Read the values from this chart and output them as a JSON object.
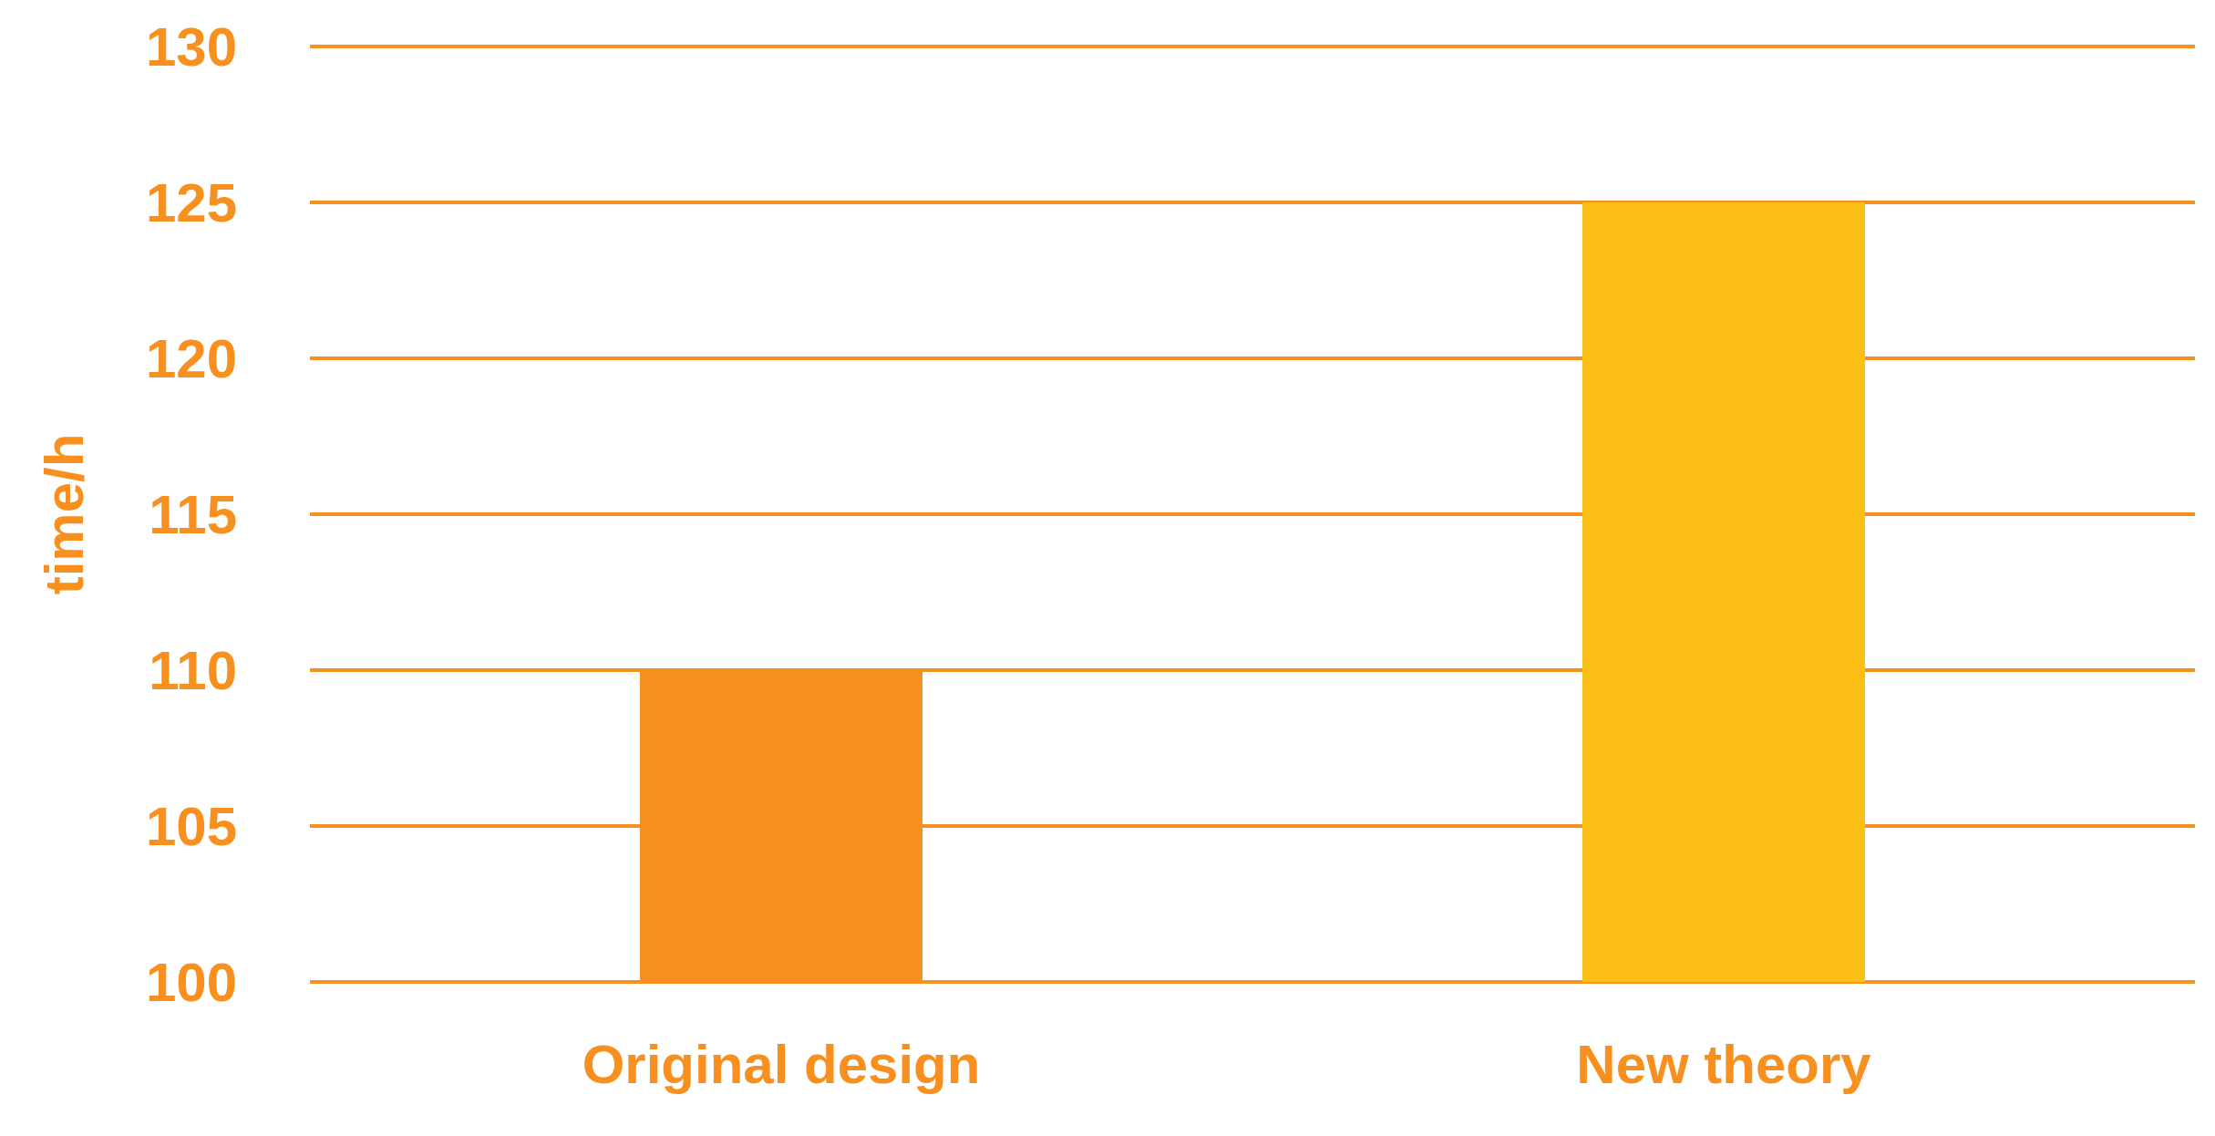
{
  "chart_data": {
    "type": "bar",
    "ylabel": "time/h",
    "categories": [
      "Original design",
      "New theory"
    ],
    "values": [
      110,
      125
    ],
    "colors": [
      "#f7901e",
      "#fbbf16"
    ],
    "ylim": [
      100,
      130
    ],
    "yticks": [
      100,
      105,
      110,
      115,
      120,
      125,
      130
    ],
    "grid": "y"
  }
}
